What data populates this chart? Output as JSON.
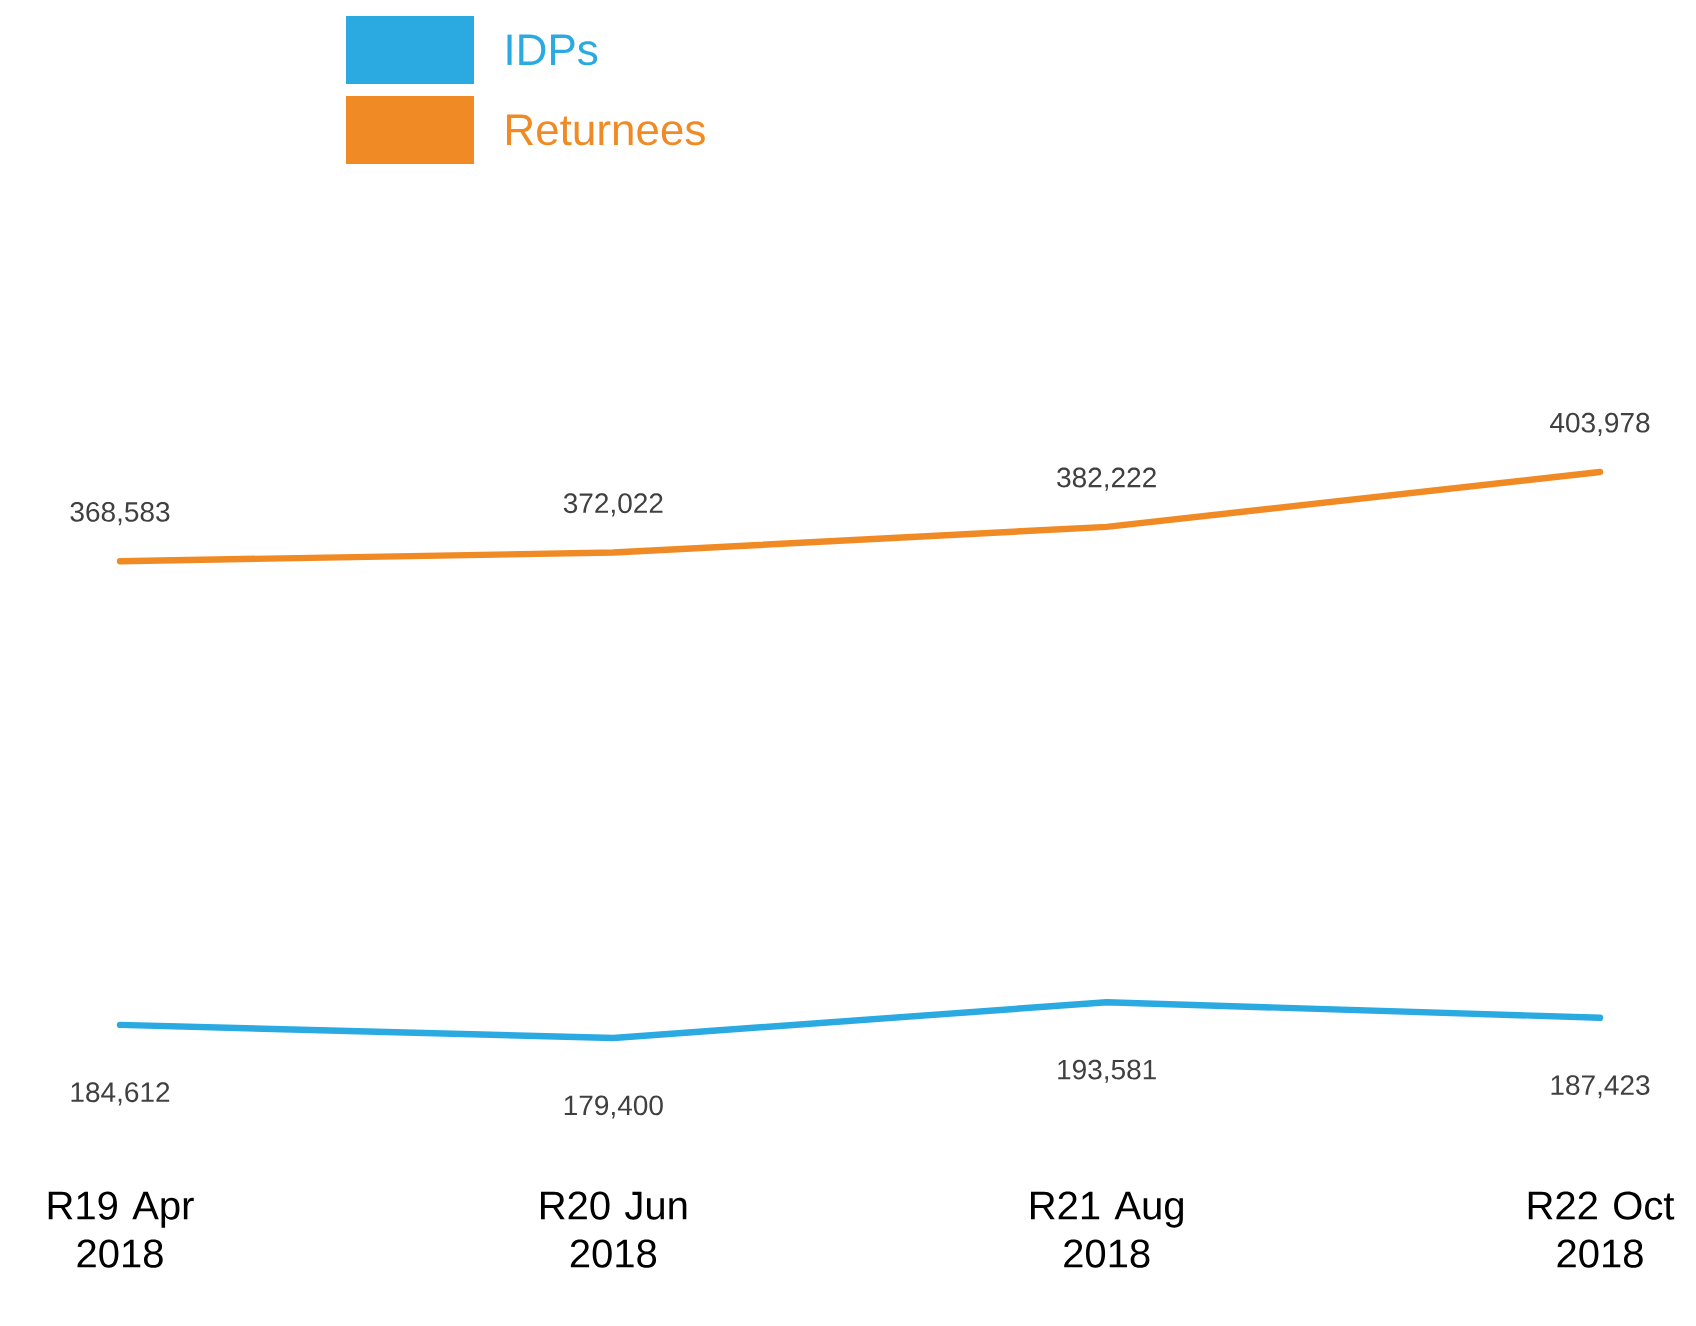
{
  "chart_data": {
    "type": "line",
    "relative": false,
    "legend": "top",
    "categories": [
      "R19 Apr 2018",
      "R20 Jun 2018",
      "R21 Aug 2018",
      "R22 Oct 2018"
    ],
    "series": [
      {
        "name": "IDPs",
        "color": "#2aaae0",
        "values": [
          184612,
          179400,
          193581,
          187423
        ],
        "value_labels": [
          "184,612",
          "179,400",
          "193,581",
          "187,423"
        ]
      },
      {
        "name": "Returnees",
        "color": "#f08a24",
        "values": [
          368583,
          372022,
          382222,
          403978
        ],
        "value_labels": [
          "368,583",
          "372,022",
          "382,222",
          "403,978"
        ]
      }
    ]
  }
}
